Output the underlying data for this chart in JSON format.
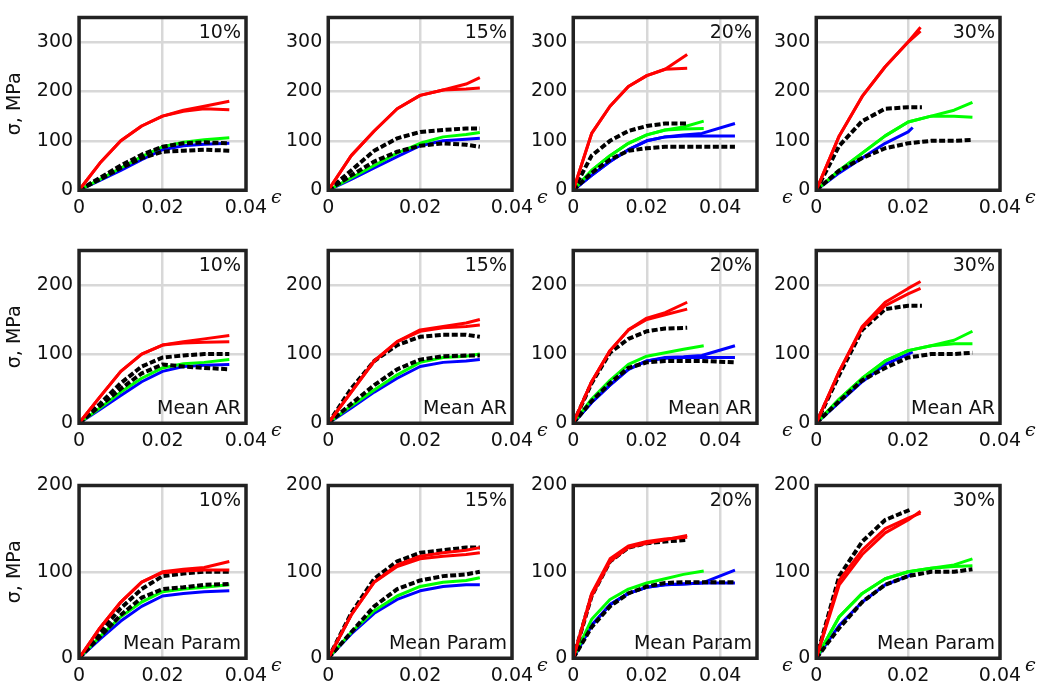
{
  "chart_data": [
    {
      "type": "line",
      "xlabel": "ϵ",
      "ylabel": "σ, MPa",
      "xlim": [
        0,
        0.04
      ],
      "ylim": [
        0,
        350
      ],
      "xticks": [
        0,
        0.02,
        0.04
      ],
      "yticks": [
        0,
        100,
        200,
        300
      ],
      "grid": true,
      "annotations": [
        "10%"
      ],
      "series": [
        {
          "color": "#ff0000",
          "x": [
            0,
            0.005,
            0.01,
            0.015,
            0.02,
            0.025,
            0.03,
            0.036
          ],
          "values": [
            0,
            55,
            100,
            130,
            150,
            162,
            170,
            180
          ]
        },
        {
          "color": "#ff0000",
          "x": [
            0,
            0.005,
            0.01,
            0.015,
            0.02,
            0.025,
            0.03,
            0.036
          ],
          "values": [
            0,
            55,
            100,
            130,
            150,
            160,
            165,
            163
          ]
        },
        {
          "color": "#000000",
          "line_style": "dashed",
          "x": [
            0,
            0.005,
            0.01,
            0.015,
            0.02,
            0.025,
            0.03,
            0.036
          ],
          "values": [
            0,
            25,
            50,
            72,
            88,
            95,
            97,
            95
          ]
        },
        {
          "color": "#000000",
          "line_style": "dashed",
          "x": [
            0,
            0.005,
            0.01,
            0.015,
            0.02,
            0.025,
            0.03,
            0.036
          ],
          "values": [
            0,
            22,
            45,
            65,
            78,
            80,
            82,
            80
          ]
        },
        {
          "color": "#00ff00",
          "x": [
            0,
            0.005,
            0.01,
            0.015,
            0.02,
            0.025,
            0.03,
            0.036
          ],
          "values": [
            0,
            22,
            45,
            68,
            88,
            97,
            102,
            106
          ]
        },
        {
          "color": "#0000ff",
          "x": [
            0,
            0.005,
            0.01,
            0.015,
            0.02,
            0.025,
            0.03,
            0.036
          ],
          "values": [
            0,
            20,
            40,
            62,
            82,
            90,
            93,
            95
          ]
        }
      ]
    },
    {
      "type": "line",
      "xlabel": "ϵ",
      "xlim": [
        0,
        0.04
      ],
      "ylim": [
        0,
        350
      ],
      "xticks": [
        0,
        0.02,
        0.04
      ],
      "yticks": [
        0,
        100,
        200,
        300
      ],
      "grid": true,
      "annotations": [
        "15%"
      ],
      "series": [
        {
          "color": "#ff0000",
          "x": [
            0,
            0.005,
            0.01,
            0.015,
            0.02,
            0.025,
            0.03,
            0.033
          ],
          "values": [
            0,
            70,
            120,
            165,
            192,
            203,
            215,
            228
          ]
        },
        {
          "color": "#ff0000",
          "x": [
            0,
            0.005,
            0.01,
            0.015,
            0.02,
            0.025,
            0.03,
            0.033
          ],
          "values": [
            0,
            70,
            120,
            165,
            192,
            203,
            205,
            207
          ]
        },
        {
          "color": "#000000",
          "line_style": "dashed",
          "x": [
            0,
            0.005,
            0.01,
            0.015,
            0.02,
            0.025,
            0.03,
            0.033
          ],
          "values": [
            0,
            40,
            80,
            105,
            118,
            122,
            125,
            125
          ]
        },
        {
          "color": "#000000",
          "line_style": "dashed",
          "x": [
            0,
            0.005,
            0.01,
            0.015,
            0.02,
            0.025,
            0.03,
            0.033
          ],
          "values": [
            0,
            30,
            58,
            78,
            90,
            95,
            92,
            88
          ]
        },
        {
          "color": "#00ff00",
          "x": [
            0,
            0.005,
            0.01,
            0.015,
            0.02,
            0.025,
            0.03,
            0.033
          ],
          "values": [
            0,
            25,
            50,
            75,
            95,
            108,
            113,
            117
          ]
        },
        {
          "color": "#0000ff",
          "x": [
            0,
            0.005,
            0.01,
            0.015,
            0.02,
            0.025,
            0.03,
            0.033
          ],
          "values": [
            0,
            22,
            45,
            68,
            90,
            100,
            103,
            105
          ]
        }
      ]
    },
    {
      "type": "line",
      "xlabel": "ϵ",
      "xlim": [
        0,
        0.05
      ],
      "ylim": [
        0,
        350
      ],
      "xticks": [
        0,
        0.02,
        0.04
      ],
      "yticks": [
        0,
        100,
        200,
        300
      ],
      "grid": true,
      "annotations": [
        "20%"
      ],
      "series": [
        {
          "color": "#ff0000",
          "x": [
            0,
            0.005,
            0.01,
            0.015,
            0.02,
            0.025,
            0.031
          ],
          "values": [
            0,
            115,
            170,
            210,
            232,
            245,
            275
          ]
        },
        {
          "color": "#ff0000",
          "x": [
            0,
            0.005,
            0.01,
            0.015,
            0.02,
            0.025,
            0.031
          ],
          "values": [
            0,
            115,
            170,
            210,
            232,
            245,
            247
          ]
        },
        {
          "color": "#000000",
          "line_style": "dashed",
          "x": [
            0,
            0.005,
            0.01,
            0.015,
            0.02,
            0.025,
            0.031
          ],
          "values": [
            0,
            70,
            100,
            120,
            130,
            135,
            135
          ]
        },
        {
          "color": "#000000",
          "line_style": "dashed",
          "x": [
            0,
            0.005,
            0.01,
            0.015,
            0.02,
            0.025,
            0.03,
            0.035,
            0.044
          ],
          "values": [
            0,
            35,
            62,
            80,
            85,
            88,
            88,
            88,
            88
          ]
        },
        {
          "color": "#00ff00",
          "x": [
            0,
            0.005,
            0.01,
            0.015,
            0.02,
            0.025,
            0.03,
            0.0355
          ],
          "values": [
            0,
            40,
            70,
            95,
            112,
            122,
            128,
            140
          ]
        },
        {
          "color": "#00ff00",
          "x": [
            0,
            0.005,
            0.01,
            0.015,
            0.02,
            0.025,
            0.03,
            0.0355
          ],
          "values": [
            0,
            40,
            70,
            95,
            112,
            122,
            124,
            125
          ]
        },
        {
          "color": "#0000ff",
          "x": [
            0,
            0.005,
            0.01,
            0.015,
            0.02,
            0.025,
            0.03,
            0.035,
            0.044
          ],
          "values": [
            0,
            30,
            58,
            82,
            100,
            108,
            112,
            115,
            135
          ]
        },
        {
          "color": "#0000ff",
          "x": [
            0,
            0.005,
            0.01,
            0.015,
            0.02,
            0.025,
            0.03,
            0.035,
            0.044
          ],
          "values": [
            0,
            30,
            58,
            82,
            100,
            108,
            110,
            110,
            110
          ]
        }
      ]
    },
    {
      "type": "line",
      "xlabel": "ϵ",
      "xlim": [
        0,
        0.04
      ],
      "ylim": [
        0,
        350
      ],
      "xticks": [
        0,
        0.02,
        0.04
      ],
      "yticks": [
        0,
        100,
        200,
        300
      ],
      "grid": true,
      "annotations": [
        "30%"
      ],
      "series": [
        {
          "color": "#ff0000",
          "x": [
            0,
            0.005,
            0.01,
            0.015,
            0.02,
            0.0227
          ],
          "values": [
            0,
            110,
            190,
            250,
            300,
            330
          ]
        },
        {
          "color": "#ff0000",
          "x": [
            0,
            0.005,
            0.01,
            0.015,
            0.02,
            0.0227
          ],
          "values": [
            0,
            110,
            190,
            250,
            300,
            322
          ]
        },
        {
          "color": "#000000",
          "line_style": "dashed",
          "x": [
            0,
            0.005,
            0.01,
            0.015,
            0.02,
            0.023
          ],
          "values": [
            0,
            90,
            140,
            165,
            168,
            168
          ]
        },
        {
          "color": "#000000",
          "line_style": "dashed",
          "x": [
            0,
            0.005,
            0.01,
            0.015,
            0.02,
            0.025,
            0.03,
            0.034
          ],
          "values": [
            0,
            40,
            65,
            85,
            95,
            100,
            100,
            102
          ]
        },
        {
          "color": "#00ff00",
          "x": [
            0,
            0.005,
            0.01,
            0.015,
            0.02,
            0.025,
            0.03,
            0.034
          ],
          "values": [
            0,
            40,
            75,
            110,
            138,
            150,
            162,
            178
          ]
        },
        {
          "color": "#00ff00",
          "x": [
            0,
            0.005,
            0.01,
            0.015,
            0.02,
            0.025,
            0.03,
            0.034
          ],
          "values": [
            0,
            40,
            75,
            110,
            138,
            150,
            150,
            148
          ]
        },
        {
          "color": "#0000ff",
          "x": [
            0,
            0.005,
            0.01,
            0.015,
            0.02,
            0.021
          ],
          "values": [
            0,
            35,
            65,
            95,
            118,
            127
          ]
        }
      ]
    },
    {
      "type": "line",
      "xlabel": "ϵ",
      "ylabel": "σ, MPa",
      "xlim": [
        0,
        0.04
      ],
      "ylim": [
        0,
        250
      ],
      "xticks": [
        0,
        0.02,
        0.04
      ],
      "yticks": [
        0,
        100,
        200
      ],
      "grid": true,
      "annotations": [
        "10%",
        "Mean AR"
      ],
      "series": [
        {
          "color": "#ff0000",
          "x": [
            0,
            0.005,
            0.01,
            0.015,
            0.02,
            0.025,
            0.03,
            0.036
          ],
          "values": [
            0,
            38,
            75,
            100,
            113,
            118,
            122,
            127
          ]
        },
        {
          "color": "#ff0000",
          "x": [
            0,
            0.005,
            0.01,
            0.015,
            0.02,
            0.025,
            0.03,
            0.036
          ],
          "values": [
            0,
            38,
            75,
            100,
            113,
            116,
            117,
            118
          ]
        },
        {
          "color": "#000000",
          "line_style": "dashed",
          "x": [
            0,
            0.005,
            0.01,
            0.015,
            0.02,
            0.025,
            0.03,
            0.036
          ],
          "values": [
            0,
            28,
            58,
            82,
            95,
            98,
            100,
            100
          ]
        },
        {
          "color": "#000000",
          "line_style": "dashed",
          "x": [
            0,
            0.005,
            0.01,
            0.015,
            0.02,
            0.025,
            0.03,
            0.036
          ],
          "values": [
            0,
            25,
            50,
            72,
            85,
            82,
            80,
            78
          ]
        },
        {
          "color": "#00ff00",
          "x": [
            0,
            0.005,
            0.01,
            0.015,
            0.02,
            0.025,
            0.03,
            0.036
          ],
          "values": [
            0,
            22,
            45,
            65,
            80,
            86,
            88,
            92
          ]
        },
        {
          "color": "#0000ff",
          "x": [
            0,
            0.005,
            0.01,
            0.015,
            0.02,
            0.025,
            0.03,
            0.036
          ],
          "values": [
            0,
            20,
            40,
            60,
            75,
            82,
            84,
            85
          ]
        }
      ]
    },
    {
      "type": "line",
      "xlabel": "ϵ",
      "xlim": [
        0,
        0.04
      ],
      "ylim": [
        0,
        250
      ],
      "xticks": [
        0,
        0.02,
        0.04
      ],
      "yticks": [
        0,
        100,
        200
      ],
      "grid": true,
      "annotations": [
        "15%",
        "Mean AR"
      ],
      "series": [
        {
          "color": "#ff0000",
          "x": [
            0,
            0.005,
            0.01,
            0.015,
            0.02,
            0.025,
            0.03,
            0.033
          ],
          "values": [
            0,
            45,
            90,
            118,
            135,
            140,
            145,
            150
          ]
        },
        {
          "color": "#ff0000",
          "x": [
            0,
            0.005,
            0.01,
            0.015,
            0.02,
            0.025,
            0.03,
            0.033
          ],
          "values": [
            0,
            45,
            90,
            118,
            133,
            138,
            140,
            142
          ]
        },
        {
          "color": "#000000",
          "line_style": "dashed",
          "x": [
            0,
            0.005,
            0.01,
            0.015,
            0.02,
            0.025,
            0.03,
            0.033
          ],
          "values": [
            0,
            50,
            90,
            113,
            125,
            128,
            128,
            125
          ]
        },
        {
          "color": "#000000",
          "line_style": "dashed",
          "x": [
            0,
            0.005,
            0.01,
            0.015,
            0.02,
            0.025,
            0.03,
            0.033
          ],
          "values": [
            0,
            28,
            55,
            78,
            92,
            97,
            98,
            98
          ]
        },
        {
          "color": "#00ff00",
          "x": [
            0,
            0.005,
            0.01,
            0.015,
            0.02,
            0.025,
            0.03,
            0.033
          ],
          "values": [
            0,
            25,
            48,
            70,
            88,
            95,
            97,
            100
          ]
        },
        {
          "color": "#0000ff",
          "x": [
            0,
            0.005,
            0.01,
            0.015,
            0.02,
            0.025,
            0.03,
            0.033
          ],
          "values": [
            0,
            22,
            45,
            65,
            82,
            88,
            90,
            92
          ]
        }
      ]
    },
    {
      "type": "line",
      "xlabel": "ϵ",
      "xlim": [
        0,
        0.05
      ],
      "ylim": [
        0,
        250
      ],
      "xticks": [
        0,
        0.02,
        0.04
      ],
      "yticks": [
        0,
        100,
        200
      ],
      "grid": true,
      "annotations": [
        "20%",
        "Mean AR"
      ],
      "series": [
        {
          "color": "#ff0000",
          "x": [
            0,
            0.005,
            0.01,
            0.015,
            0.02,
            0.025,
            0.031
          ],
          "values": [
            0,
            60,
            105,
            135,
            152,
            160,
            175
          ]
        },
        {
          "color": "#ff0000",
          "x": [
            0,
            0.005,
            0.01,
            0.015,
            0.02,
            0.025,
            0.031
          ],
          "values": [
            0,
            60,
            105,
            135,
            150,
            157,
            165
          ]
        },
        {
          "color": "#000000",
          "line_style": "dashed",
          "x": [
            0,
            0.005,
            0.01,
            0.015,
            0.02,
            0.025,
            0.031
          ],
          "values": [
            0,
            58,
            102,
            122,
            133,
            137,
            138
          ]
        },
        {
          "color": "#000000",
          "line_style": "dashed",
          "x": [
            0,
            0.005,
            0.01,
            0.015,
            0.02,
            0.025,
            0.03,
            0.035,
            0.044
          ],
          "values": [
            0,
            32,
            58,
            80,
            88,
            90,
            90,
            90,
            88
          ]
        },
        {
          "color": "#00ff00",
          "x": [
            0,
            0.005,
            0.01,
            0.015,
            0.02,
            0.025,
            0.03,
            0.0355
          ],
          "values": [
            0,
            35,
            62,
            85,
            97,
            102,
            107,
            112
          ]
        },
        {
          "color": "#0000ff",
          "x": [
            0,
            0.005,
            0.01,
            0.015,
            0.02,
            0.025,
            0.03,
            0.035,
            0.044
          ],
          "values": [
            0,
            30,
            55,
            78,
            90,
            95,
            96,
            98,
            112
          ]
        },
        {
          "color": "#0000ff",
          "x": [
            0,
            0.005,
            0.01,
            0.015,
            0.02,
            0.025,
            0.03,
            0.035,
            0.044
          ],
          "values": [
            0,
            30,
            55,
            78,
            90,
            94,
            95,
            95,
            95
          ]
        }
      ]
    },
    {
      "type": "line",
      "xlabel": "ϵ",
      "xlim": [
        0,
        0.04
      ],
      "ylim": [
        0,
        250
      ],
      "xticks": [
        0,
        0.02,
        0.04
      ],
      "yticks": [
        0,
        100,
        200
      ],
      "grid": true,
      "annotations": [
        "30%",
        "Mean AR"
      ],
      "series": [
        {
          "color": "#ff0000",
          "x": [
            0,
            0.005,
            0.01,
            0.015,
            0.02,
            0.0227
          ],
          "values": [
            0,
            75,
            140,
            175,
            195,
            205
          ]
        },
        {
          "color": "#ff0000",
          "x": [
            0,
            0.005,
            0.01,
            0.015,
            0.02,
            0.0227
          ],
          "values": [
            0,
            75,
            138,
            170,
            187,
            195
          ]
        },
        {
          "color": "#000000",
          "line_style": "dashed",
          "x": [
            0,
            0.005,
            0.01,
            0.015,
            0.02,
            0.023
          ],
          "values": [
            0,
            70,
            135,
            165,
            170,
            170
          ]
        },
        {
          "color": "#000000",
          "line_style": "dashed",
          "x": [
            0,
            0.005,
            0.01,
            0.015,
            0.02,
            0.025,
            0.03,
            0.034
          ],
          "values": [
            0,
            32,
            62,
            80,
            95,
            100,
            100,
            102
          ]
        },
        {
          "color": "#00ff00",
          "x": [
            0,
            0.005,
            0.01,
            0.015,
            0.02,
            0.025,
            0.03,
            0.034
          ],
          "values": [
            0,
            35,
            65,
            90,
            105,
            112,
            120,
            133
          ]
        },
        {
          "color": "#00ff00",
          "x": [
            0,
            0.005,
            0.01,
            0.015,
            0.02,
            0.025,
            0.03,
            0.034
          ],
          "values": [
            0,
            35,
            65,
            90,
            105,
            112,
            115,
            115
          ]
        },
        {
          "color": "#0000ff",
          "x": [
            0,
            0.005,
            0.01,
            0.015,
            0.02,
            0.021
          ],
          "values": [
            0,
            30,
            60,
            85,
            100,
            103
          ]
        }
      ]
    },
    {
      "type": "line",
      "xlabel": "ϵ",
      "ylabel": "σ, MPa",
      "xlim": [
        0,
        0.04
      ],
      "ylim": [
        0,
        200
      ],
      "xticks": [
        0,
        0.02,
        0.04
      ],
      "yticks": [
        0,
        100,
        200
      ],
      "grid": true,
      "annotations": [
        "10%",
        "Mean Param"
      ],
      "series": [
        {
          "color": "#ff0000",
          "x": [
            0,
            0.005,
            0.01,
            0.015,
            0.02,
            0.025,
            0.03,
            0.036
          ],
          "values": [
            0,
            35,
            65,
            88,
            100,
            103,
            105,
            112
          ]
        },
        {
          "color": "#ff0000",
          "x": [
            0,
            0.005,
            0.01,
            0.015,
            0.02,
            0.025,
            0.03,
            0.036
          ],
          "values": [
            0,
            35,
            65,
            88,
            99,
            101,
            102,
            102
          ]
        },
        {
          "color": "#000000",
          "line_style": "dashed",
          "x": [
            0,
            0.005,
            0.01,
            0.015,
            0.02,
            0.025,
            0.03,
            0.036
          ],
          "values": [
            0,
            30,
            58,
            80,
            95,
            98,
            100,
            100
          ]
        },
        {
          "color": "#000000",
          "line_style": "dashed",
          "x": [
            0,
            0.005,
            0.01,
            0.015,
            0.02,
            0.025,
            0.03,
            0.036
          ],
          "values": [
            0,
            25,
            50,
            70,
            80,
            82,
            85,
            86
          ]
        },
        {
          "color": "#00ff00",
          "x": [
            0,
            0.005,
            0.01,
            0.015,
            0.02,
            0.025,
            0.03,
            0.036
          ],
          "values": [
            0,
            25,
            48,
            65,
            77,
            80,
            82,
            85
          ]
        },
        {
          "color": "#0000ff",
          "x": [
            0,
            0.005,
            0.01,
            0.015,
            0.02,
            0.025,
            0.03,
            0.036
          ],
          "values": [
            0,
            22,
            43,
            60,
            72,
            75,
            77,
            78
          ]
        }
      ]
    },
    {
      "type": "line",
      "xlabel": "ϵ",
      "xlim": [
        0,
        0.04
      ],
      "ylim": [
        0,
        200
      ],
      "xticks": [
        0,
        0.02,
        0.04
      ],
      "yticks": [
        0,
        100,
        200
      ],
      "grid": true,
      "annotations": [
        "15%",
        "Mean Param"
      ],
      "series": [
        {
          "color": "#ff0000",
          "x": [
            0,
            0.005,
            0.01,
            0.015,
            0.02,
            0.025,
            0.03,
            0.033
          ],
          "values": [
            0,
            50,
            88,
            108,
            118,
            122,
            125,
            128
          ]
        },
        {
          "color": "#ff0000",
          "x": [
            0,
            0.005,
            0.01,
            0.015,
            0.02,
            0.025,
            0.03,
            0.033
          ],
          "values": [
            0,
            50,
            88,
            106,
            115,
            118,
            120,
            122
          ]
        },
        {
          "color": "#000000",
          "line_style": "dashed",
          "x": [
            0,
            0.005,
            0.01,
            0.015,
            0.02,
            0.025,
            0.03,
            0.033
          ],
          "values": [
            0,
            52,
            92,
            112,
            122,
            125,
            128,
            128
          ]
        },
        {
          "color": "#000000",
          "line_style": "dashed",
          "x": [
            0,
            0.005,
            0.01,
            0.015,
            0.02,
            0.025,
            0.03,
            0.033
          ],
          "values": [
            0,
            30,
            60,
            80,
            90,
            95,
            97,
            100
          ]
        },
        {
          "color": "#00ff00",
          "x": [
            0,
            0.005,
            0.01,
            0.015,
            0.02,
            0.025,
            0.03,
            0.033
          ],
          "values": [
            0,
            30,
            55,
            72,
            83,
            88,
            90,
            93
          ]
        },
        {
          "color": "#0000ff",
          "x": [
            0,
            0.005,
            0.01,
            0.015,
            0.02,
            0.025,
            0.03,
            0.033
          ],
          "values": [
            0,
            28,
            52,
            68,
            78,
            83,
            85,
            85
          ]
        }
      ]
    },
    {
      "type": "line",
      "xlabel": "ϵ",
      "xlim": [
        0,
        0.05
      ],
      "ylim": [
        0,
        200
      ],
      "xticks": [
        0,
        0.02,
        0.04
      ],
      "yticks": [
        0,
        100,
        200
      ],
      "grid": true,
      "annotations": [
        "20%",
        "Mean Param"
      ],
      "series": [
        {
          "color": "#ff0000",
          "x": [
            0,
            0.005,
            0.01,
            0.015,
            0.02,
            0.025,
            0.031
          ],
          "values": [
            0,
            75,
            115,
            130,
            135,
            138,
            140
          ]
        },
        {
          "color": "#ff0000",
          "x": [
            0,
            0.005,
            0.01,
            0.015,
            0.02,
            0.025,
            0.031
          ],
          "values": [
            0,
            72,
            112,
            128,
            133,
            137,
            142
          ]
        },
        {
          "color": "#000000",
          "line_style": "dashed",
          "x": [
            0,
            0.005,
            0.01,
            0.015,
            0.02,
            0.025,
            0.031
          ],
          "values": [
            0,
            72,
            112,
            128,
            133,
            135,
            137
          ]
        },
        {
          "color": "#000000",
          "line_style": "dashed",
          "x": [
            0,
            0.005,
            0.01,
            0.015,
            0.02,
            0.025,
            0.03,
            0.035,
            0.044
          ],
          "values": [
            0,
            36,
            60,
            75,
            83,
            87,
            88,
            88,
            88
          ]
        },
        {
          "color": "#00ff00",
          "x": [
            0,
            0.005,
            0.01,
            0.015,
            0.02,
            0.025,
            0.03,
            0.0355
          ],
          "values": [
            0,
            45,
            68,
            80,
            87,
            92,
            97,
            101
          ]
        },
        {
          "color": "#0000ff",
          "x": [
            0,
            0.005,
            0.01,
            0.015,
            0.02,
            0.025,
            0.03,
            0.035,
            0.044
          ],
          "values": [
            0,
            38,
            62,
            75,
            82,
            85,
            86,
            87,
            102
          ]
        },
        {
          "color": "#0000ff",
          "x": [
            0,
            0.005,
            0.01,
            0.015,
            0.02,
            0.025,
            0.03,
            0.035,
            0.044
          ],
          "values": [
            0,
            38,
            62,
            75,
            82,
            85,
            86,
            87,
            87
          ]
        }
      ]
    },
    {
      "type": "line",
      "xlabel": "ϵ",
      "xlim": [
        0,
        0.04
      ],
      "ylim": [
        0,
        200
      ],
      "xticks": [
        0,
        0.02,
        0.04
      ],
      "yticks": [
        0,
        100,
        200
      ],
      "grid": true,
      "annotations": [
        "30%",
        "Mean Param"
      ],
      "series": [
        {
          "color": "#ff0000",
          "x": [
            0,
            0.005,
            0.01,
            0.015,
            0.02,
            0.0227
          ],
          "values": [
            0,
            90,
            125,
            150,
            162,
            168
          ]
        },
        {
          "color": "#ff0000",
          "x": [
            0,
            0.005,
            0.01,
            0.015,
            0.02,
            0.0227
          ],
          "values": [
            0,
            85,
            120,
            145,
            160,
            170
          ]
        },
        {
          "color": "#000000",
          "line_style": "dashed",
          "x": [
            0,
            0.005,
            0.01,
            0.015,
            0.0205
          ],
          "values": [
            0,
            95,
            135,
            160,
            172
          ]
        },
        {
          "color": "#000000",
          "line_style": "dashed",
          "x": [
            0,
            0.005,
            0.01,
            0.015,
            0.02,
            0.025,
            0.03,
            0.034
          ],
          "values": [
            0,
            35,
            65,
            85,
            95,
            100,
            100,
            103
          ]
        },
        {
          "color": "#00ff00",
          "x": [
            0,
            0.005,
            0.01,
            0.015,
            0.02,
            0.025,
            0.03,
            0.034
          ],
          "values": [
            0,
            48,
            75,
            92,
            100,
            104,
            108,
            115
          ]
        },
        {
          "color": "#00ff00",
          "x": [
            0,
            0.005,
            0.01,
            0.015,
            0.02,
            0.025,
            0.03,
            0.034
          ],
          "values": [
            0,
            48,
            75,
            92,
            100,
            104,
            106,
            107
          ]
        },
        {
          "color": "#0000ff",
          "x": [
            0,
            0.005,
            0.01,
            0.015,
            0.02,
            0.021
          ],
          "values": [
            0,
            38,
            65,
            85,
            95,
            98
          ]
        }
      ]
    }
  ]
}
